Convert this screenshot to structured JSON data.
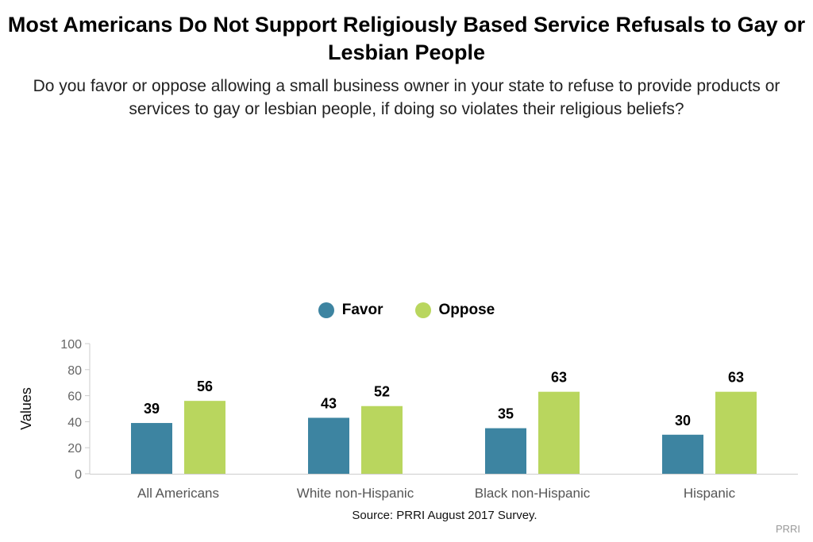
{
  "chart_data": {
    "type": "bar",
    "title": "Most Americans Do Not Support Religiously Based Service Refusals to Gay or Lesbian People",
    "subtitle": "Do you favor or oppose allowing a small business owner in your state to refuse to provide products or services to gay or lesbian people, if doing so violates their religious beliefs?",
    "ylabel": "Values",
    "xlabel": "",
    "ylim": [
      0,
      100
    ],
    "yticks": [
      0,
      20,
      40,
      60,
      80,
      100
    ],
    "categories": [
      "All Americans",
      "White non-Hispanic",
      "Black non-Hispanic",
      "Hispanic"
    ],
    "series": [
      {
        "name": "Favor",
        "color": "#3d84a1",
        "values": [
          39,
          43,
          35,
          30
        ]
      },
      {
        "name": "Oppose",
        "color": "#b9d65e",
        "values": [
          56,
          52,
          63,
          63
        ]
      }
    ],
    "legend_position": "top-center",
    "grid": false
  },
  "source": "Source: PRRI August 2017 Survey.",
  "credit": "PRRI"
}
